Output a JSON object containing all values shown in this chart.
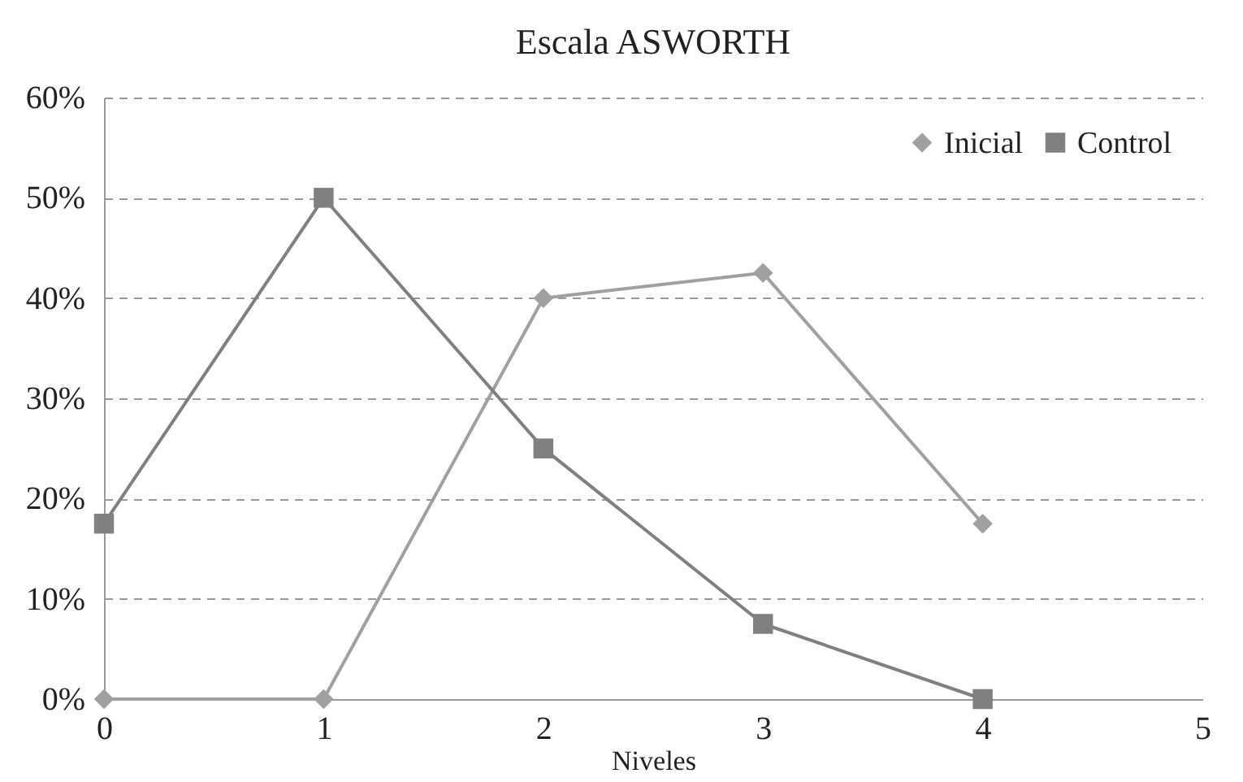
{
  "chart_data": {
    "type": "line",
    "title": "Escala ASWORTH",
    "xlabel": "Niveles",
    "x": [
      0,
      1,
      2,
      3,
      4
    ],
    "series": [
      {
        "name": "Inicial",
        "color": "#a0a0a0",
        "marker": "diamond",
        "values": [
          0,
          0,
          40,
          42.5,
          17.5
        ]
      },
      {
        "name": "Control",
        "color": "#808080",
        "marker": "square",
        "values": [
          17.5,
          50,
          25,
          7.5,
          0
        ]
      }
    ],
    "xlim": [
      0,
      5
    ],
    "xticks": [
      0,
      1,
      2,
      3,
      4,
      5
    ],
    "ylim": [
      0,
      60
    ],
    "yticks": [
      {
        "value": 0,
        "label": "0%"
      },
      {
        "value": 10,
        "label": "10%"
      },
      {
        "value": 20,
        "label": "20%"
      },
      {
        "value": 30,
        "label": "30%"
      },
      {
        "value": 40,
        "label": "40%"
      },
      {
        "value": 50,
        "label": "50%"
      },
      {
        "value": 60,
        "label": "60%"
      }
    ],
    "grid": "y",
    "legend": "top right",
    "line_style": "solid"
  }
}
